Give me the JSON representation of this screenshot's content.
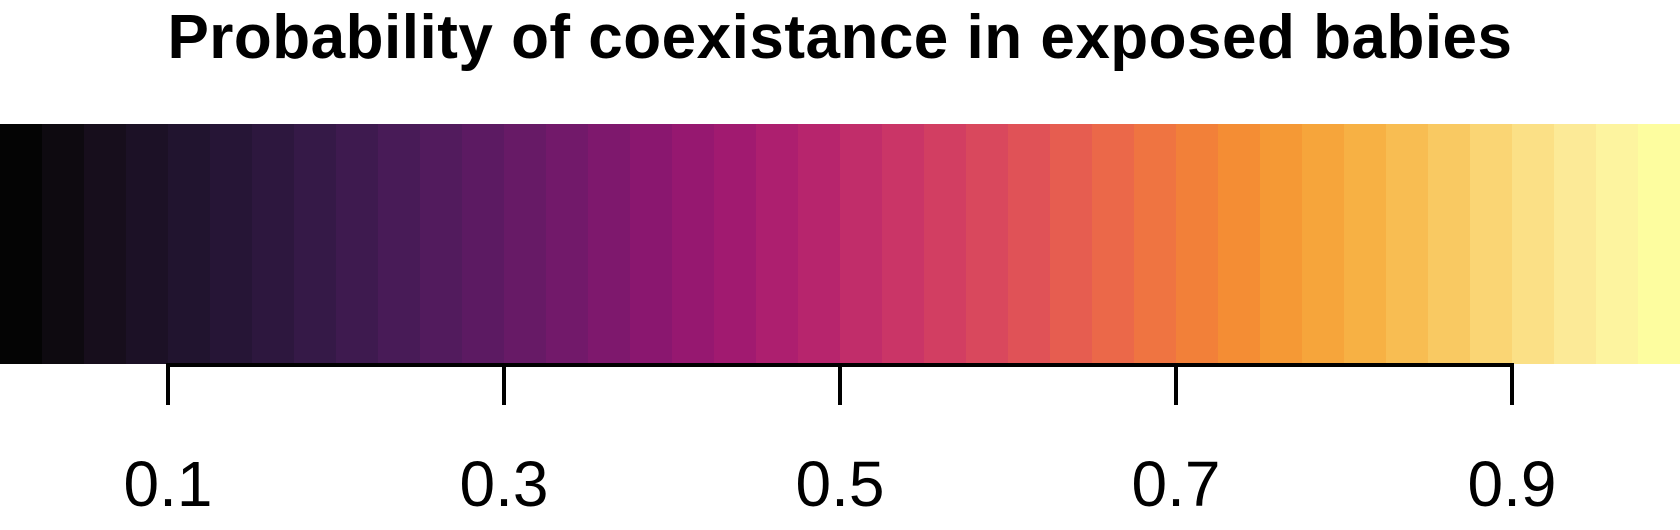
{
  "chart_data": {
    "type": "heatmap",
    "title": "Probability of coexistance in exposed babies",
    "colormap": "inferno",
    "range": [
      0.0,
      1.0
    ],
    "ticks": [
      0.1,
      0.3,
      0.5,
      0.7,
      0.9
    ],
    "tick_labels": [
      "0.1",
      "0.3",
      "0.5",
      "0.7",
      "0.9"
    ],
    "colors": [
      "#040404",
      "#0e0a10",
      "#170e1c",
      "#1c1126",
      "#21142f",
      "#261536",
      "#2d173e",
      "#351947",
      "#3e1a4f",
      "#481b57",
      "#521b5d",
      "#5c1a62",
      "#671a66",
      "#72196a",
      "#7e186d",
      "#8a176f",
      "#961870",
      "#a11a70",
      "#ad1f6f",
      "#b7256d",
      "#c12d6a",
      "#ca3567",
      "#d23e62",
      "#d9485d",
      "#e05257",
      "#e65d50",
      "#eb6849",
      "#ef7441",
      "#f28039",
      "#f48d34",
      "#f59935",
      "#f6a53b",
      "#f7b144",
      "#f8bd52",
      "#f9c962",
      "#fad574",
      "#fbe086",
      "#fcea97",
      "#fdf49f",
      "#fdfd9f"
    ]
  }
}
